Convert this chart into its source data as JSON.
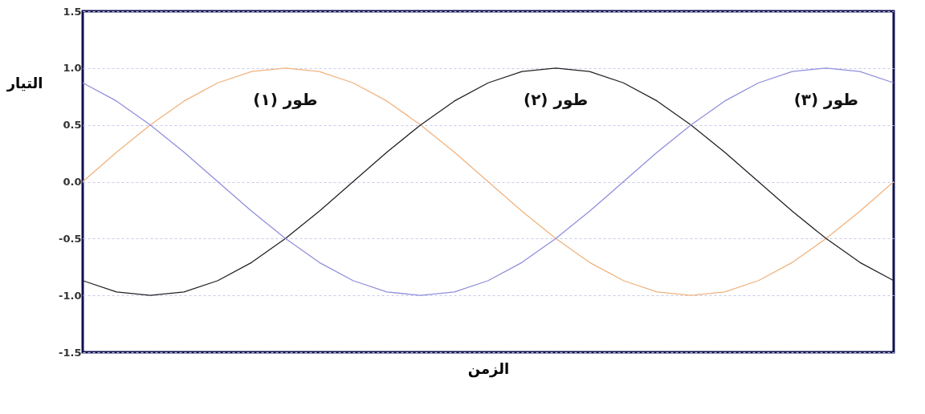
{
  "chart_data": {
    "type": "line",
    "xlabel": "الزمن",
    "ylabel": "التيار",
    "categories": [
      null,
      null,
      null,
      null,
      null,
      null,
      null,
      null,
      null,
      null,
      null,
      null,
      null,
      null,
      null,
      null,
      null,
      null,
      null,
      null,
      null,
      null,
      null,
      null,
      null
    ],
    "series": [
      {
        "name": "طور (١)",
        "color": "#f0b37e",
        "values": [
          0,
          0.26,
          0.5,
          0.71,
          0.87,
          0.97,
          1,
          0.97,
          0.87,
          0.71,
          0.5,
          0.26,
          0,
          -0.26,
          -0.5,
          -0.71,
          -0.87,
          -0.97,
          -1,
          -0.97,
          -0.87,
          -0.71,
          -0.5,
          -0.26,
          0
        ]
      },
      {
        "name": "طور (٢)",
        "color": "#222222",
        "values": [
          -0.87,
          -0.97,
          -1,
          -0.97,
          -0.87,
          -0.71,
          -0.5,
          -0.26,
          0,
          0.26,
          0.5,
          0.71,
          0.87,
          0.97,
          1,
          0.97,
          0.87,
          0.71,
          0.5,
          0.26,
          0,
          -0.26,
          -0.5,
          -0.71,
          -0.87
        ]
      },
      {
        "name": "طور (٣)",
        "color": "#8f8fdc",
        "values": [
          0.87,
          0.71,
          0.5,
          0.26,
          0,
          -0.26,
          -0.5,
          -0.71,
          -0.87,
          -0.97,
          -1,
          -0.97,
          -0.87,
          -0.71,
          -0.5,
          -0.26,
          0,
          0.26,
          0.5,
          0.71,
          0.87,
          0.97,
          1,
          0.97,
          0.87
        ]
      }
    ],
    "ylim": [
      -1.5,
      1.5
    ],
    "yticks": [
      {
        "value": -1.5,
        "label": "-1.5"
      },
      {
        "value": -1,
        "label": "-1.0"
      },
      {
        "value": -0.5,
        "label": "-0.5"
      },
      {
        "value": 0,
        "label": "0.0"
      },
      {
        "value": 0.5,
        "label": "0.5"
      },
      {
        "value": 1,
        "label": "1.0"
      },
      {
        "value": 1.5,
        "label": "1.5"
      }
    ],
    "grid": "y",
    "legend": false,
    "tick_labels": "y",
    "marker": "none",
    "line_style": "solid"
  }
}
